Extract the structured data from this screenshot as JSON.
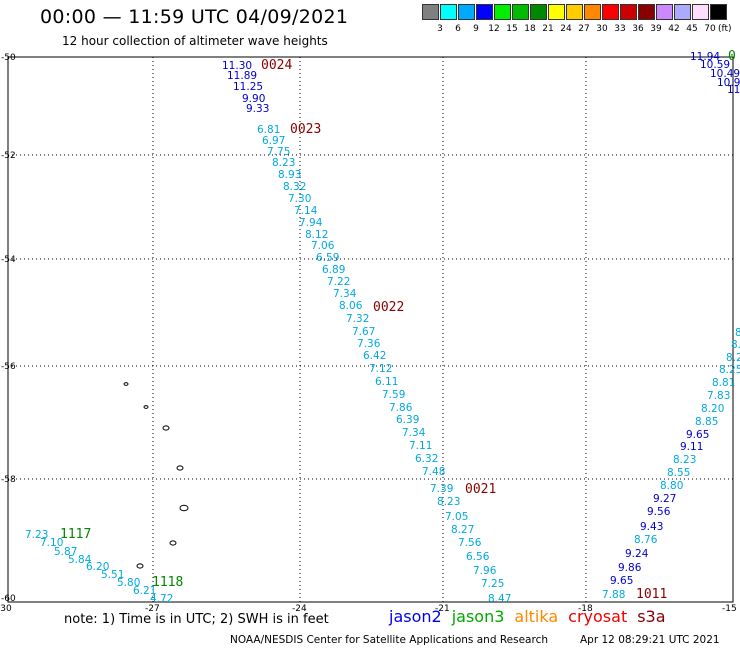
{
  "header": {
    "title": "00:00 — 11:59 UTC 04/09/2021",
    "subtitle": "12 hour collection of altimeter wave heights"
  },
  "legend": {
    "colors": [
      "#808080",
      "#00ffff",
      "#00aaff",
      "#0000ff",
      "#00ee00",
      "#00bb00",
      "#008800",
      "#ffff00",
      "#ffcc00",
      "#ff8800",
      "#ff0000",
      "#cc0000",
      "#880000",
      "#cc88ff",
      "#aaaaff",
      "#ffddff",
      "#000000"
    ],
    "labels": [
      "3",
      "6",
      "9",
      "12",
      "15",
      "18",
      "21",
      "24",
      "27",
      "30",
      "33",
      "36",
      "39",
      "42",
      "45",
      "70"
    ],
    "unit": "(ft)"
  },
  "axes": {
    "lat_labels": [
      "-50",
      "-52",
      "-54",
      "-56",
      "-58",
      "-60"
    ],
    "lon_labels": [
      "-30",
      "-27",
      "-24",
      "-21",
      "-18",
      "-15"
    ]
  },
  "tracks": {
    "main": {
      "values": [
        "11.30",
        "11.89",
        "11.25",
        "9.90",
        "9.33",
        "6.81",
        "6.97",
        "7.75",
        "8.23",
        "8.93",
        "8.32",
        "7.30",
        "7.14",
        "7.94",
        "8.12",
        "7.06",
        "6.59",
        "6.89",
        "7.22",
        "7.34",
        "8.06",
        "7.32",
        "7.67",
        "7.36",
        "6.42",
        "7.12",
        "6.11",
        "7.59",
        "7.86",
        "6.39",
        "7.34",
        "7.11",
        "6.32",
        "7.48",
        "7.39",
        "8.23",
        "7.05",
        "8.27",
        "7.56",
        "6.56",
        "7.96",
        "7.25",
        "8.47"
      ],
      "time_labels": [
        "0024",
        "0023",
        "0022",
        "0021"
      ]
    },
    "southwest": {
      "values": [
        "7.23",
        "7.10",
        "5.87",
        "5.84",
        "6.20",
        "5.51",
        "5.80",
        "6.21",
        "4.72"
      ],
      "time_labels": [
        "1117",
        "1118"
      ]
    },
    "east": {
      "values": [
        "8.",
        "8.",
        "8.2",
        "8.25",
        "8.81",
        "7.83",
        "8.20",
        "8.85",
        "9.65",
        "9.11",
        "8.23",
        "8.55",
        "8.80",
        "9.27",
        "9.56",
        "9.43",
        "8.76",
        "9.24",
        "9.86",
        "9.65",
        "7.88"
      ],
      "time_labels": [
        "1011"
      ]
    },
    "northeast": {
      "values": [
        "11.94",
        "10.59",
        "10.49",
        "10.9",
        "11"
      ],
      "time_labels": [
        "0"
      ]
    }
  },
  "note": "note: 1) Time is in UTC; 2) SWH is in feet",
  "satellites": [
    {
      "name": "jason2",
      "color": "#0000ee"
    },
    {
      "name": "jason3",
      "color": "#00aa00"
    },
    {
      "name": "altika",
      "color": "#ff8800"
    },
    {
      "name": "cryosat",
      "color": "#ee0000"
    },
    {
      "name": "s3a",
      "color": "#880000"
    }
  ],
  "footer": {
    "source": "NOAA/NESDIS Center for Satellite Applications and Research",
    "timestamp": "Apr 12 08:29:21 UTC 2021"
  }
}
